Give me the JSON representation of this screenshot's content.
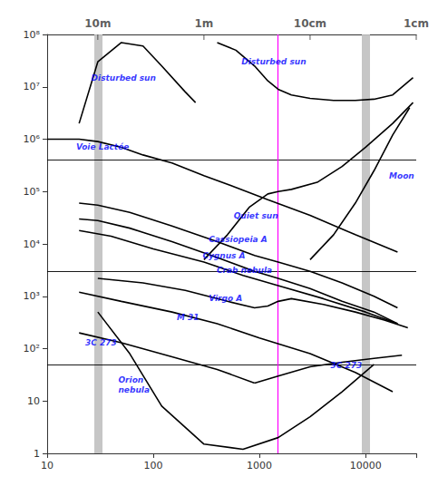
{
  "chart_data": {
    "type": "line",
    "log": true,
    "grid": false,
    "xlim": [
      10,
      30000
    ],
    "xticks": [
      10,
      100,
      1000,
      10000
    ],
    "x2lim": [
      10,
      30000
    ],
    "x2ticks": [
      {
        "value": 30,
        "label": "10m"
      },
      {
        "value": 300,
        "label": "1m"
      },
      {
        "value": 3000,
        "label": "10cm"
      },
      {
        "value": 30000,
        "label": "1cm"
      }
    ],
    "ylim": [
      1,
      100000000
    ],
    "yticks": [
      1,
      10,
      {
        "value": 100,
        "label": "10²"
      },
      {
        "value": 1000,
        "label": "10³"
      },
      {
        "value": 10000,
        "label": "10⁴"
      },
      {
        "value": 100000,
        "label": "10⁵"
      },
      {
        "value": 1000000,
        "label": "10⁶"
      },
      {
        "value": 10000000,
        "label": "10⁷"
      },
      {
        "value": 100000000,
        "label": "10⁸"
      }
    ],
    "reference_lines": [
      {
        "axis": "x",
        "value": 30,
        "color": "#c0c0c0"
      },
      {
        "axis": "x",
        "value": 10000,
        "color": "#c0c0c0"
      },
      {
        "axis": "y",
        "value": 400000,
        "color": "black"
      },
      {
        "axis": "y",
        "value": 3000,
        "color": "black"
      },
      {
        "axis": "y",
        "value": 50,
        "color": "black"
      },
      {
        "axis": "x",
        "value": 1500,
        "color": "magenta"
      }
    ],
    "series": [
      {
        "name": "Disturbed sun",
        "color": "black",
        "x": [
          20,
          30,
          50,
          80,
          120,
          200,
          250
        ],
        "values": [
          2000000,
          30000000,
          70000000,
          60000000,
          25000000,
          8000000,
          5000000
        ]
      },
      {
        "name": "Disturbed sun",
        "color": "black",
        "x": [
          400,
          600,
          900,
          1200,
          1500,
          2000,
          3000,
          5000,
          8000,
          12000,
          18000,
          28000
        ],
        "values": [
          70000000,
          50000000,
          25000000,
          13000000,
          9000000,
          7000000,
          6000000,
          5500000,
          5500000,
          5800000,
          7000000,
          15000000
        ]
      },
      {
        "name": "Voie Lactée",
        "color": "black",
        "x": [
          10,
          20,
          30,
          50,
          80,
          150,
          300,
          600,
          1200,
          3000,
          8000,
          20000
        ],
        "values": [
          1000000,
          1000000,
          900000,
          700000,
          500000,
          350000,
          200000,
          120000,
          70000,
          35000,
          15000,
          7000
        ]
      },
      {
        "name": "Quiet sun",
        "color": "black",
        "x": [
          300,
          500,
          800,
          1200,
          1500,
          2000,
          3500,
          6000,
          10000,
          18000,
          28000
        ],
        "values": [
          5000,
          15000,
          50000,
          90000,
          100000,
          110000,
          150000,
          300000,
          700000,
          2000000,
          5000000
        ]
      },
      {
        "name": "Moon",
        "color": "black",
        "x": [
          3000,
          5000,
          8000,
          12000,
          18000,
          26000
        ],
        "values": [
          5000,
          15000,
          60000,
          250000,
          1200000,
          4000000
        ]
      },
      {
        "name": "Cassiopeia A",
        "color": "black",
        "x": [
          20,
          30,
          60,
          150,
          400,
          900,
          1500,
          3000,
          6000,
          12000,
          20000
        ],
        "values": [
          60000,
          55000,
          40000,
          22000,
          11000,
          6000,
          4500,
          3000,
          1800,
          1000,
          600
        ]
      },
      {
        "name": "Cygnus A",
        "color": "black",
        "x": [
          20,
          30,
          60,
          150,
          400,
          900,
          1500,
          3000,
          6000,
          12000,
          20000
        ],
        "values": [
          30000,
          28000,
          20000,
          11000,
          5500,
          3000,
          2200,
          1400,
          800,
          500,
          300
        ]
      },
      {
        "name": "Crab nebula",
        "color": "black",
        "x": [
          20,
          40,
          100,
          300,
          700,
          1500,
          4000,
          10000,
          20000
        ],
        "values": [
          18000,
          14000,
          8000,
          4500,
          2500,
          1600,
          900,
          500,
          300
        ]
      },
      {
        "name": "Virgo A",
        "color": "black",
        "x": [
          30,
          80,
          200,
          500,
          900,
          1200,
          1500,
          2000,
          4000,
          8000,
          15000,
          25000
        ],
        "values": [
          2200,
          1800,
          1300,
          800,
          600,
          650,
          800,
          900,
          700,
          500,
          350,
          250
        ]
      },
      {
        "name": "M 31",
        "color": "black",
        "x": [
          20,
          50,
          150,
          400,
          1000,
          3000,
          8000,
          18000
        ],
        "values": [
          1200,
          800,
          500,
          300,
          160,
          80,
          35,
          15
        ]
      },
      {
        "name": "3C 273",
        "color": "black",
        "x": [
          20,
          50,
          150,
          400,
          900
        ],
        "values": [
          200,
          130,
          70,
          40,
          22
        ]
      },
      {
        "name": "3C 273",
        "color": "black",
        "x": [
          900,
          1500,
          3000,
          6000,
          12000,
          22000
        ],
        "values": [
          22,
          30,
          45,
          55,
          65,
          75
        ]
      },
      {
        "name": "Orion\nnebula",
        "color": "black",
        "x": [
          30,
          60,
          120,
          300,
          700,
          1500,
          3000,
          6000,
          12000
        ],
        "values": [
          500,
          80,
          8,
          1.5,
          1.2,
          2,
          5,
          15,
          50
        ]
      }
    ],
    "annotations": [
      {
        "text": "Disturbed sun",
        "x": 25,
        "y": 15000000,
        "color": "blue"
      },
      {
        "text": "Disturbed sun",
        "x": 650,
        "y": 30000000,
        "color": "blue"
      },
      {
        "text": "Voie Lactée",
        "x": 18,
        "y": 700000,
        "color": "blue"
      },
      {
        "text": "Quiet sun",
        "x": 550,
        "y": 35000,
        "color": "blue"
      },
      {
        "text": "Moon",
        "x": 16000,
        "y": 200000,
        "color": "blue"
      },
      {
        "text": "Cassiopeia A",
        "x": 320,
        "y": 12000,
        "color": "blue"
      },
      {
        "text": "Cygnus A",
        "x": 280,
        "y": 6000,
        "color": "blue"
      },
      {
        "text": "Crab nebula",
        "x": 380,
        "y": 3200,
        "color": "blue"
      },
      {
        "text": "Virgo A",
        "x": 320,
        "y": 900,
        "color": "blue"
      },
      {
        "text": "M 31",
        "x": 160,
        "y": 400,
        "color": "blue"
      },
      {
        "text": "3C 273",
        "x": 22,
        "y": 130,
        "color": "blue"
      },
      {
        "text": "3C 273",
        "x": 4500,
        "y": 48,
        "color": "blue"
      },
      {
        "text": "Orion\nnebula",
        "x": 45,
        "y": 20,
        "color": "blue"
      }
    ]
  }
}
